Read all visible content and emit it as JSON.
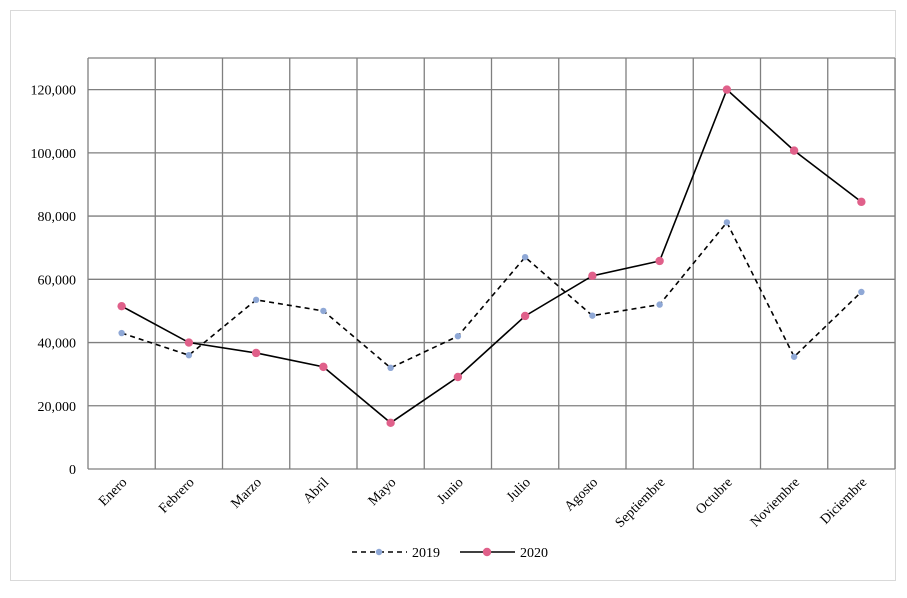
{
  "chart_data": {
    "type": "line",
    "title": "",
    "xlabel": "",
    "ylabel": "",
    "categories": [
      "Enero",
      "Febrero",
      "Marzo",
      "Abril",
      "Mayo",
      "Junio",
      "Julio",
      "Agosto",
      "Septiembre",
      "Octubre",
      "Noviembre",
      "Diciembre"
    ],
    "ylim": [
      0,
      130000
    ],
    "yticks": [
      0,
      20000,
      40000,
      60000,
      80000,
      100000,
      120000
    ],
    "ytick_labels": [
      "0",
      "20,000",
      "40,000",
      "60,000",
      "80,000",
      "100,000",
      "120,000"
    ],
    "grid": true,
    "legend_position": "bottom",
    "series": [
      {
        "name": "2019",
        "values": [
          43000,
          36000,
          53500,
          50000,
          32000,
          42000,
          67000,
          48500,
          52000,
          78000,
          35500,
          56000
        ],
        "color": "#8fa8d6",
        "line_color": "#000000",
        "dash": true
      },
      {
        "name": "2020",
        "values": [
          51500,
          40000,
          36700,
          32300,
          14600,
          29100,
          48400,
          61100,
          65800,
          120000,
          100700,
          84500
        ],
        "color": "#e0608a",
        "line_color": "#000000",
        "dash": false
      }
    ]
  }
}
